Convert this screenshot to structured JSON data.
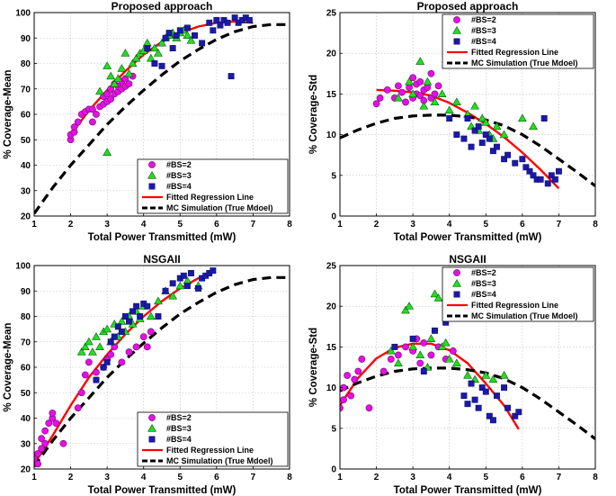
{
  "chart_data": [
    {
      "type": "scatter",
      "title": "Proposed approach",
      "xlabel": "Total Power Transmitted (mW)",
      "ylabel": "% Coverage-Mean",
      "xlim": [
        1,
        8
      ],
      "ylim": [
        20,
        100
      ],
      "xticks": [
        1,
        2,
        3,
        4,
        5,
        6,
        7,
        8
      ],
      "yticks": [
        20,
        30,
        40,
        50,
        60,
        70,
        80,
        90,
        100
      ],
      "grid": true,
      "legend_position": "bottom-right",
      "series": [
        {
          "name": "#BS=2",
          "marker": "circle",
          "color": "#e60ee6",
          "x": [
            2.0,
            2.0,
            2.1,
            2.1,
            2.2,
            2.3,
            2.4,
            2.5,
            2.6,
            2.6,
            2.7,
            2.8,
            2.9,
            2.9,
            3.0,
            3.0,
            3.1,
            3.1,
            3.2,
            3.2,
            3.3,
            3.3,
            3.4,
            3.4,
            3.5,
            3.5,
            3.6,
            3.7
          ],
          "y": [
            50,
            52,
            53,
            55,
            57,
            60,
            61,
            62,
            57,
            62,
            60,
            63,
            64,
            67,
            65,
            68,
            66,
            70,
            68,
            72,
            69,
            71,
            70,
            73,
            71,
            74,
            72,
            75
          ]
        },
        {
          "name": "#BS=3",
          "marker": "triangle",
          "color": "#22dd22",
          "x": [
            2.8,
            3.0,
            3.0,
            3.1,
            3.2,
            3.3,
            3.4,
            3.5,
            3.6,
            3.7,
            3.8,
            3.9,
            4.0,
            4.1,
            4.2,
            4.3,
            4.4,
            4.5,
            4.6,
            4.7,
            4.8,
            4.9,
            5.0,
            5.1,
            5.2,
            5.3
          ],
          "y": [
            69,
            45,
            79,
            75,
            72,
            74,
            78,
            84,
            76,
            80,
            82,
            84,
            85,
            88,
            82,
            86,
            84,
            88,
            90,
            91,
            92,
            90,
            92,
            93,
            91,
            89
          ]
        },
        {
          "name": "#BS=4",
          "marker": "square",
          "color": "#1a1aa8",
          "x": [
            4.1,
            4.3,
            4.5,
            4.6,
            4.7,
            4.8,
            4.9,
            5.0,
            5.2,
            5.4,
            5.6,
            5.8,
            5.9,
            6.0,
            6.1,
            6.2,
            6.3,
            6.4,
            6.5,
            6.6,
            6.7,
            6.8,
            6.9
          ],
          "y": [
            86,
            80,
            79,
            90,
            92,
            86,
            91,
            93,
            94,
            91,
            88,
            96,
            93,
            97,
            95,
            97,
            96,
            75,
            98,
            96,
            97,
            98,
            97
          ]
        },
        {
          "name": "Fitted Regression Line",
          "type": "line",
          "color": "#ff0000",
          "x": [
            2.0,
            2.5,
            3.0,
            3.5,
            4.0,
            4.5,
            5.0,
            5.5,
            6.0,
            6.5,
            7.0
          ],
          "y": [
            52,
            61.5,
            69.5,
            77,
            83.5,
            88.5,
            92,
            94.5,
            96,
            96.5,
            96
          ]
        },
        {
          "name": "MC Simulation (True Mdoel)",
          "type": "line",
          "style": "dashed",
          "color": "#000000",
          "x": [
            1.0,
            1.5,
            2.0,
            2.5,
            3.0,
            3.5,
            4.0,
            4.5,
            5.0,
            5.5,
            6.0,
            6.5,
            7.0,
            7.5,
            8.0
          ],
          "y": [
            21,
            31,
            40,
            48,
            56,
            63,
            69.5,
            75.5,
            81,
            85.5,
            89.5,
            92.5,
            94.5,
            95.3,
            95.3
          ]
        }
      ]
    },
    {
      "type": "scatter",
      "title": "Proposed approach",
      "xlabel": "Total Power Transmitted (mW)",
      "ylabel": "% Coverage-Std",
      "xlim": [
        1,
        8
      ],
      "ylim": [
        0,
        25
      ],
      "xticks": [
        1,
        2,
        3,
        4,
        5,
        6,
        7,
        8
      ],
      "yticks": [
        0,
        5,
        10,
        15,
        20,
        25
      ],
      "grid": true,
      "legend_position": "top-right",
      "series": [
        {
          "name": "#BS=2",
          "marker": "circle",
          "color": "#e60ee6",
          "x": [
            2.0,
            2.1,
            2.3,
            2.5,
            2.6,
            2.7,
            2.8,
            2.9,
            3.0,
            3.0,
            3.1,
            3.1,
            3.2,
            3.2,
            3.3,
            3.3,
            3.4,
            3.5,
            3.5,
            3.6,
            3.7
          ],
          "y": [
            13.8,
            14.5,
            15.5,
            14.5,
            16.0,
            15.2,
            14.0,
            15.8,
            17.0,
            14.5,
            16.2,
            15.0,
            14.8,
            16.5,
            15.5,
            14.2,
            15.8,
            14.5,
            17.5,
            15.0,
            16.0
          ]
        },
        {
          "name": "#BS=3",
          "marker": "triangle",
          "color": "#22dd22",
          "x": [
            2.6,
            2.9,
            3.0,
            3.2,
            3.3,
            3.4,
            3.6,
            3.8,
            4.0,
            4.2,
            4.5,
            4.6,
            4.7,
            4.8,
            4.9,
            5.0,
            5.1,
            5.2,
            5.3,
            5.5,
            6.0,
            6.3
          ],
          "y": [
            14.5,
            16.5,
            15.0,
            19.0,
            13.5,
            16.5,
            14.0,
            15.0,
            13.0,
            14.0,
            12.5,
            11.0,
            13.5,
            10.5,
            12.0,
            11.5,
            10.0,
            9.5,
            11.0,
            10.0,
            12.0,
            11.0
          ]
        },
        {
          "name": "#BS=4",
          "marker": "square",
          "color": "#1a1aa8",
          "x": [
            4.0,
            4.2,
            4.4,
            4.5,
            4.6,
            4.7,
            4.8,
            4.9,
            5.0,
            5.1,
            5.2,
            5.3,
            5.5,
            5.6,
            5.8,
            6.0,
            6.1,
            6.2,
            6.3,
            6.4,
            6.5,
            6.6,
            6.7,
            6.8,
            6.9,
            7.0
          ],
          "y": [
            12.0,
            10.0,
            9.5,
            12.0,
            8.5,
            10.5,
            11.0,
            9.0,
            10.0,
            9.5,
            8.0,
            8.5,
            7.0,
            7.5,
            6.5,
            7.0,
            6.0,
            5.5,
            5.0,
            4.5,
            4.5,
            12.0,
            4.0,
            5.0,
            4.5,
            5.5
          ]
        },
        {
          "name": "Fitted Regression Line",
          "type": "line",
          "color": "#ff0000",
          "x": [
            2.0,
            2.5,
            3.0,
            3.5,
            4.0,
            4.5,
            5.0,
            5.5,
            6.0,
            6.5,
            7.0
          ],
          "y": [
            15.5,
            15.4,
            15.2,
            14.8,
            13.9,
            12.7,
            11.3,
            9.7,
            7.8,
            5.7,
            3.4
          ]
        },
        {
          "name": "MC Simulation (True Mdoel)",
          "type": "line",
          "style": "dashed",
          "color": "#000000",
          "x": [
            1.0,
            1.5,
            2.0,
            2.5,
            3.0,
            3.5,
            4.0,
            4.5,
            5.0,
            5.5,
            6.0,
            6.5,
            7.0,
            7.5,
            8.0
          ],
          "y": [
            9.6,
            10.6,
            11.4,
            12.0,
            12.3,
            12.4,
            12.4,
            12.2,
            11.8,
            11.1,
            10.0,
            8.6,
            7.0,
            5.4,
            3.7
          ]
        }
      ]
    },
    {
      "type": "scatter",
      "title": "NSGAII",
      "xlabel": "Total Power Transmitted (mW)",
      "ylabel": "% Coverage-Mean",
      "xlim": [
        1,
        8
      ],
      "ylim": [
        20,
        100
      ],
      "xticks": [
        1,
        2,
        3,
        4,
        5,
        6,
        7,
        8
      ],
      "yticks": [
        20,
        30,
        40,
        50,
        60,
        70,
        80,
        90,
        100
      ],
      "grid": true,
      "legend_position": "bottom-right",
      "series": [
        {
          "name": "#BS=2",
          "marker": "circle",
          "color": "#e60ee6",
          "x": [
            1.0,
            1.1,
            1.1,
            1.2,
            1.2,
            1.3,
            1.3,
            1.4,
            1.5,
            1.5,
            1.6,
            1.8,
            2.2,
            2.3,
            2.4,
            2.5,
            2.7,
            2.9,
            3.0,
            3.1,
            3.2,
            3.4,
            3.6,
            3.8,
            4.0,
            4.1,
            4.2
          ],
          "y": [
            24,
            26,
            22,
            28,
            32,
            30,
            35,
            38,
            40,
            42,
            38,
            30,
            44,
            50,
            57,
            62,
            58,
            60,
            63,
            65,
            68,
            62,
            66,
            68,
            72,
            68,
            74
          ]
        },
        {
          "name": "#BS=3",
          "marker": "triangle",
          "color": "#22dd22",
          "x": [
            2.3,
            2.4,
            2.5,
            2.6,
            2.7,
            2.8,
            2.9,
            3.0,
            3.1,
            3.2,
            3.3,
            3.4,
            3.5,
            3.6,
            3.7,
            3.8,
            3.9,
            4.0,
            4.2,
            4.4,
            4.6,
            4.8,
            5.0,
            5.2,
            5.5
          ],
          "y": [
            66,
            68,
            70,
            66,
            72,
            68,
            74,
            75,
            70,
            77,
            72,
            78,
            74,
            80,
            77,
            82,
            79,
            84,
            80,
            86,
            90,
            88,
            92,
            94,
            92
          ]
        },
        {
          "name": "#BS=4",
          "marker": "square",
          "color": "#1a1aa8",
          "x": [
            2.7,
            2.9,
            3.0,
            3.1,
            3.2,
            3.3,
            3.4,
            3.5,
            3.6,
            3.7,
            3.8,
            3.9,
            4.0,
            4.1,
            4.4,
            4.6,
            4.8,
            5.0,
            5.1,
            5.2,
            5.3,
            5.5,
            5.6,
            5.7,
            5.8,
            5.9
          ],
          "y": [
            55,
            60,
            62,
            70,
            72,
            76,
            74,
            80,
            78,
            82,
            84,
            80,
            85,
            84,
            80,
            90,
            93,
            95,
            96,
            92,
            97,
            91,
            95,
            96,
            97,
            98
          ]
        },
        {
          "name": "Fitted Regression Line",
          "type": "line",
          "color": "#ff0000",
          "x": [
            1.0,
            1.5,
            2.0,
            2.5,
            3.0,
            3.5,
            4.0,
            4.5,
            5.0,
            5.5,
            5.9
          ],
          "y": [
            22,
            33,
            45,
            56,
            65,
            73,
            80,
            86,
            91,
            95,
            97.5
          ]
        },
        {
          "name": "MC Simulation (True Mdoel)",
          "type": "line",
          "style": "dashed",
          "color": "#000000",
          "x": [
            1.0,
            1.5,
            2.0,
            2.5,
            3.0,
            3.5,
            4.0,
            4.5,
            5.0,
            5.5,
            6.0,
            6.5,
            7.0,
            7.5,
            8.0
          ],
          "y": [
            21,
            31,
            40,
            48,
            56,
            63,
            69.5,
            75.5,
            81,
            85.5,
            89.5,
            92.5,
            94.5,
            95.3,
            95.3
          ]
        }
      ]
    },
    {
      "type": "scatter",
      "title": "NSGAII",
      "xlabel": "Total Power Transmitted (mW)",
      "ylabel": "% Coverage-Std",
      "xlim": [
        1,
        8
      ],
      "ylim": [
        0,
        25
      ],
      "xticks": [
        1,
        2,
        3,
        4,
        5,
        6,
        7,
        8
      ],
      "yticks": [
        0,
        5,
        10,
        15,
        20,
        25
      ],
      "grid": true,
      "legend_position": "top-right",
      "series": [
        {
          "name": "#BS=2",
          "marker": "circle",
          "color": "#e60ee6",
          "x": [
            1.0,
            1.1,
            1.1,
            1.2,
            1.3,
            1.4,
            1.5,
            1.6,
            1.8,
            2.2,
            2.4,
            2.6,
            2.8,
            3.0,
            3.1,
            3.2,
            3.3,
            3.5,
            3.7,
            3.9,
            4.1
          ],
          "y": [
            7.5,
            8.5,
            10.0,
            11.5,
            9.0,
            11.0,
            12.0,
            13.5,
            7.5,
            12.0,
            13.5,
            14.0,
            15.0,
            14.5,
            16.0,
            13.0,
            15.5,
            14.0,
            15.0,
            13.5,
            14.5
          ]
        },
        {
          "name": "#BS=3",
          "marker": "triangle",
          "color": "#22dd22",
          "x": [
            2.4,
            2.6,
            2.8,
            2.9,
            3.0,
            3.2,
            3.4,
            3.5,
            3.6,
            3.7,
            3.8,
            3.9,
            4.0,
            4.2,
            4.5,
            4.7,
            5.0,
            5.2,
            5.5
          ],
          "y": [
            14.5,
            13.0,
            19.5,
            20.0,
            15.0,
            14.0,
            12.5,
            16.0,
            21.5,
            21.0,
            15.0,
            15.5,
            13.5,
            13.0,
            11.5,
            11.0,
            11.5,
            11.0,
            11.5
          ]
        },
        {
          "name": "#BS=4",
          "marker": "square",
          "color": "#1a1aa8",
          "x": [
            2.5,
            3.0,
            3.3,
            3.6,
            3.9,
            4.1,
            4.3,
            4.4,
            4.5,
            4.6,
            4.7,
            4.8,
            4.9,
            5.0,
            5.1,
            5.2,
            5.3,
            5.5,
            5.6,
            5.8,
            5.9
          ],
          "y": [
            15.0,
            16.0,
            12.0,
            17.0,
            18.0,
            19.5,
            19.0,
            9.0,
            8.0,
            10.5,
            8.5,
            7.5,
            10.0,
            9.5,
            6.5,
            6.0,
            9.0,
            10.0,
            7.5,
            6.5,
            7.0
          ]
        },
        {
          "name": "Fitted Regression Line",
          "type": "line",
          "color": "#ff0000",
          "x": [
            1.0,
            1.5,
            2.0,
            2.5,
            3.0,
            3.5,
            4.0,
            4.5,
            5.0,
            5.5,
            5.9
          ],
          "y": [
            7.8,
            11.2,
            13.6,
            14.9,
            15.4,
            15.4,
            14.6,
            13.0,
            10.5,
            7.8,
            4.9
          ]
        },
        {
          "name": "MC Simulation (True Mdoel)",
          "type": "line",
          "style": "dashed",
          "color": "#000000",
          "x": [
            1.0,
            1.5,
            2.0,
            2.5,
            3.0,
            3.5,
            4.0,
            4.5,
            5.0,
            5.5,
            6.0,
            6.5,
            7.0,
            7.5,
            8.0
          ],
          "y": [
            9.6,
            10.6,
            11.4,
            12.0,
            12.3,
            12.4,
            12.4,
            12.2,
            11.8,
            11.1,
            10.0,
            8.6,
            7.0,
            5.4,
            3.7
          ]
        }
      ]
    }
  ]
}
